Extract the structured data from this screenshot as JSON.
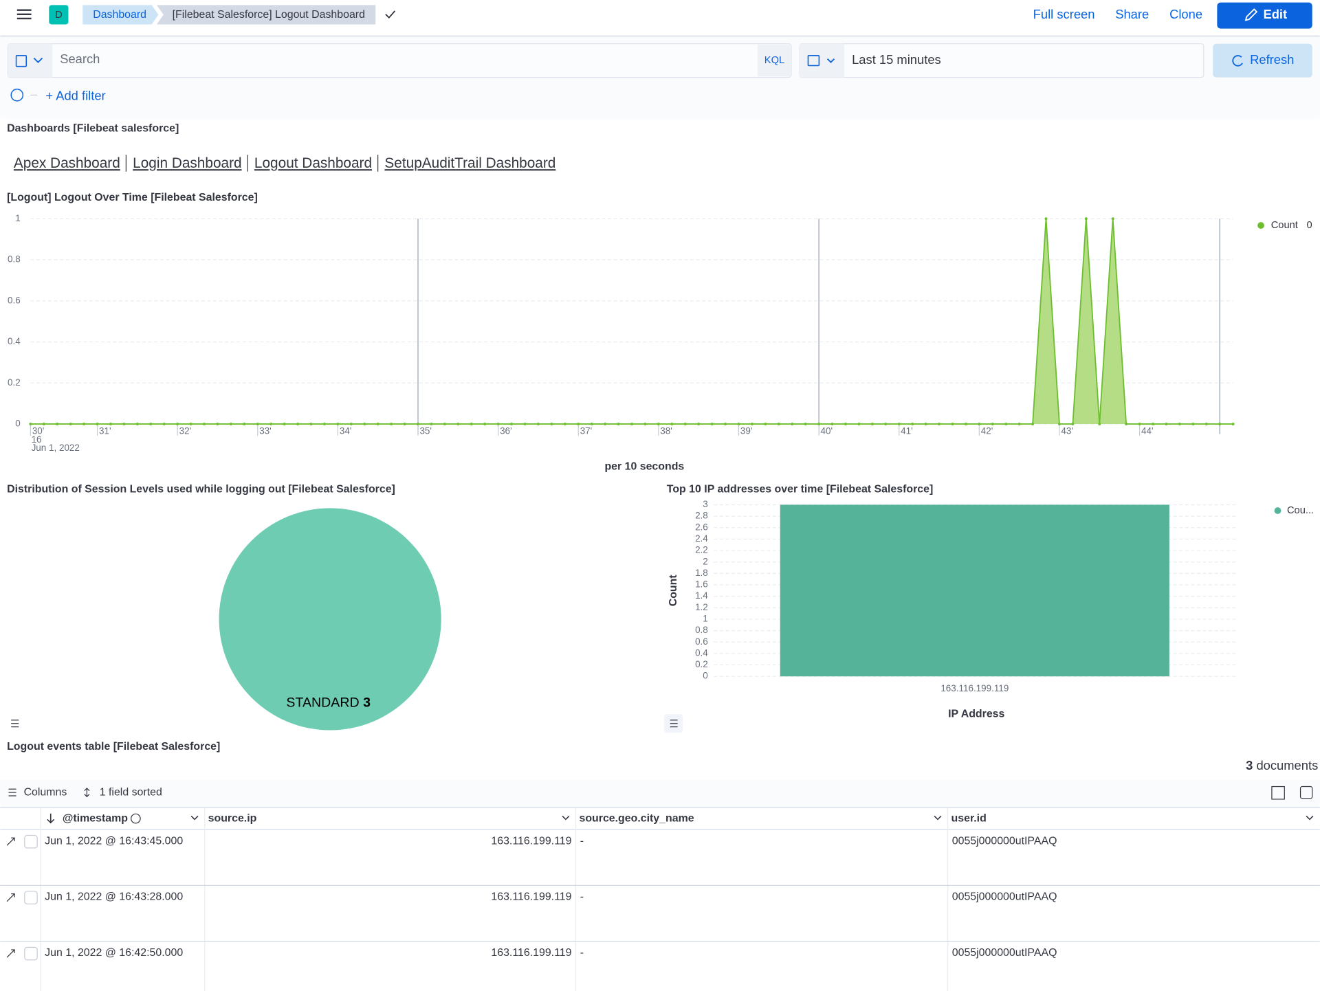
{
  "header": {
    "avatar": "D",
    "breadcrumbs": [
      "Dashboard",
      "[Filebeat Salesforce] Logout Dashboard"
    ],
    "actions": [
      "Full screen",
      "Share",
      "Clone"
    ],
    "edit": "Edit"
  },
  "query": {
    "placeholder": "Search",
    "language": "KQL",
    "time_range": "Last 15 minutes",
    "refresh": "Refresh",
    "add_filter": "+ Add filter"
  },
  "panels": [
    {
      "title": "Dashboards [Filebeat salesforce]",
      "links": [
        "Apex Dashboard",
        "Login Dashboard",
        "Logout Dashboard",
        "SetupAuditTrail Dashboard"
      ]
    },
    {
      "title": "[Logout] Logout Over Time [Filebeat Salesforce]",
      "chart_data": {
        "type": "area",
        "xlabel": "per 10 seconds",
        "xtick_sublabels": [
          "16",
          "Jun 1, 2022"
        ],
        "x": [
          10,
          20,
          30,
          40,
          50,
          60,
          70,
          80,
          90,
          100,
          110,
          120,
          130,
          140,
          150,
          160,
          170,
          180,
          190,
          200,
          210,
          220,
          230,
          240,
          250,
          260,
          270,
          280,
          290,
          300,
          310,
          320,
          330,
          340,
          350,
          360,
          370,
          380,
          390,
          400,
          410,
          420,
          430,
          440,
          450,
          460,
          470,
          480,
          490,
          500,
          510,
          520,
          530,
          540,
          550,
          560,
          570,
          580,
          590,
          600,
          610,
          620,
          630,
          640,
          650,
          660,
          670,
          680,
          690,
          700,
          710,
          720,
          730,
          740,
          750,
          760,
          770,
          780,
          790,
          800,
          810,
          820,
          830,
          840,
          850,
          860,
          870,
          880,
          890,
          900,
          910
        ],
        "series": [
          {
            "name": "Count",
            "color": "#6dbf2f",
            "fill": "#b4dd86",
            "values": [
              0,
              0,
              0,
              0,
              0,
              0,
              0,
              0,
              0,
              0,
              0,
              0,
              0,
              0,
              0,
              0,
              0,
              0,
              0,
              0,
              0,
              0,
              0,
              0,
              0,
              0,
              0,
              0,
              0,
              0,
              0,
              0,
              0,
              0,
              0,
              0,
              0,
              0,
              0,
              0,
              0,
              0,
              0,
              0,
              0,
              0,
              0,
              0,
              0,
              0,
              0,
              0,
              0,
              0,
              0,
              0,
              0,
              0,
              0,
              0,
              0,
              0,
              0,
              0,
              0,
              0,
              0,
              0,
              0,
              0,
              0,
              0,
              0,
              0,
              0,
              0,
              1,
              0,
              0,
              1,
              0,
              1,
              0,
              0,
              0,
              0,
              0,
              0,
              0,
              0,
              0
            ]
          }
        ],
        "legend_value": 0,
        "xlim": [
          10,
          910
        ],
        "xticks": [
          {
            "value": 0,
            "label": "30'"
          },
          {
            "value": 60,
            "label": "31'"
          },
          {
            "value": 120,
            "label": "32'"
          },
          {
            "value": 180,
            "label": "33'"
          },
          {
            "value": 240,
            "label": "34'"
          },
          {
            "value": 300,
            "label": "35'"
          },
          {
            "value": 360,
            "label": "36'"
          },
          {
            "value": 420,
            "label": "37'"
          },
          {
            "value": 480,
            "label": "38'"
          },
          {
            "value": 540,
            "label": "39'"
          },
          {
            "value": 600,
            "label": "40'"
          },
          {
            "value": 660,
            "label": "41'"
          },
          {
            "value": 720,
            "label": "42'"
          },
          {
            "value": 780,
            "label": "43'"
          },
          {
            "value": 840,
            "label": "44'"
          }
        ],
        "x_gridlines": [
          300,
          600,
          900
        ],
        "ylim": [
          0,
          1
        ],
        "yticks": [
          0,
          0.2,
          0.4,
          0.6,
          0.8,
          1
        ],
        "grid": true
      }
    },
    {
      "title": "Distribution of Session Levels used while logging out [Filebeat Salesforce]",
      "chart_data": {
        "type": "pie",
        "categories": [
          "STANDARD"
        ],
        "values": [
          3
        ],
        "colors": [
          "#6dccb1"
        ]
      }
    },
    {
      "title": "Top 10 IP addresses over time [Filebeat Salesforce]",
      "chart_data": {
        "type": "bar",
        "categories": [
          "163.116.199.119"
        ],
        "values": [
          3
        ],
        "color": "#54b399",
        "xlabel": "IP Address",
        "ylabel": "Count",
        "legend": "Cou...",
        "ylim": [
          0,
          3
        ],
        "yticks": [
          0,
          0.2,
          0.4,
          0.6,
          0.8,
          1,
          1.2,
          1.4,
          1.6,
          1.8,
          2,
          2.2,
          2.4,
          2.6,
          2.8,
          3
        ],
        "grid": true
      }
    }
  ],
  "table": {
    "title": "Logout events table [Filebeat Salesforce]",
    "count": 3,
    "count_label": "documents",
    "toolbar": [
      "Columns",
      "1 field sorted"
    ],
    "columns": [
      "@timestamp",
      "source.ip",
      "source.geo.city_name",
      "user.id"
    ],
    "rows": [
      [
        "Jun 1, 2022 @ 16:43:45.000",
        "163.116.199.119",
        "-",
        "0055j000000utIPAAQ"
      ],
      [
        "Jun 1, 2022 @ 16:43:28.000",
        "163.116.199.119",
        "-",
        "0055j000000utIPAAQ"
      ],
      [
        "Jun 1, 2022 @ 16:42:50.000",
        "163.116.199.119",
        "-",
        "0055j000000utIPAAQ"
      ]
    ]
  }
}
